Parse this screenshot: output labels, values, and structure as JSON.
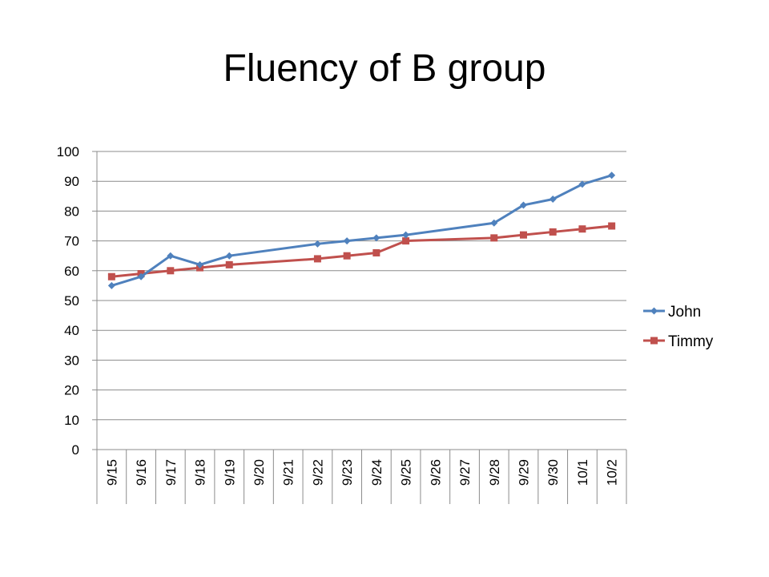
{
  "slide": {
    "title": "Fluency of B group"
  },
  "colors": {
    "john": "#4F81BD",
    "timmy": "#C0504D",
    "grid": "#8C8C8C",
    "axis": "#8C8C8C"
  },
  "chart_data": {
    "type": "line",
    "title": "",
    "xlabel": "",
    "ylabel": "",
    "ylim": [
      0,
      100
    ],
    "y_ticks": [
      0,
      10,
      20,
      30,
      40,
      50,
      60,
      70,
      80,
      90,
      100
    ],
    "grid": true,
    "legend_position": "right",
    "categories": [
      "9/15",
      "9/16",
      "9/17",
      "9/18",
      "9/19",
      "9/20",
      "9/21",
      "9/22",
      "9/23",
      "9/24",
      "9/25",
      "9/26",
      "9/27",
      "9/28",
      "9/29",
      "9/30",
      "10/1",
      "10/2"
    ],
    "series": [
      {
        "name": "John",
        "marker": "diamond",
        "color": "#4F81BD",
        "values": [
          55,
          58,
          65,
          62,
          65,
          null,
          null,
          69,
          70,
          71,
          72,
          null,
          null,
          76,
          82,
          84,
          89,
          92
        ]
      },
      {
        "name": "Timmy",
        "marker": "square",
        "color": "#C0504D",
        "values": [
          58,
          59,
          60,
          61,
          62,
          null,
          null,
          64,
          65,
          66,
          70,
          null,
          null,
          71,
          72,
          73,
          74,
          75
        ]
      }
    ]
  }
}
